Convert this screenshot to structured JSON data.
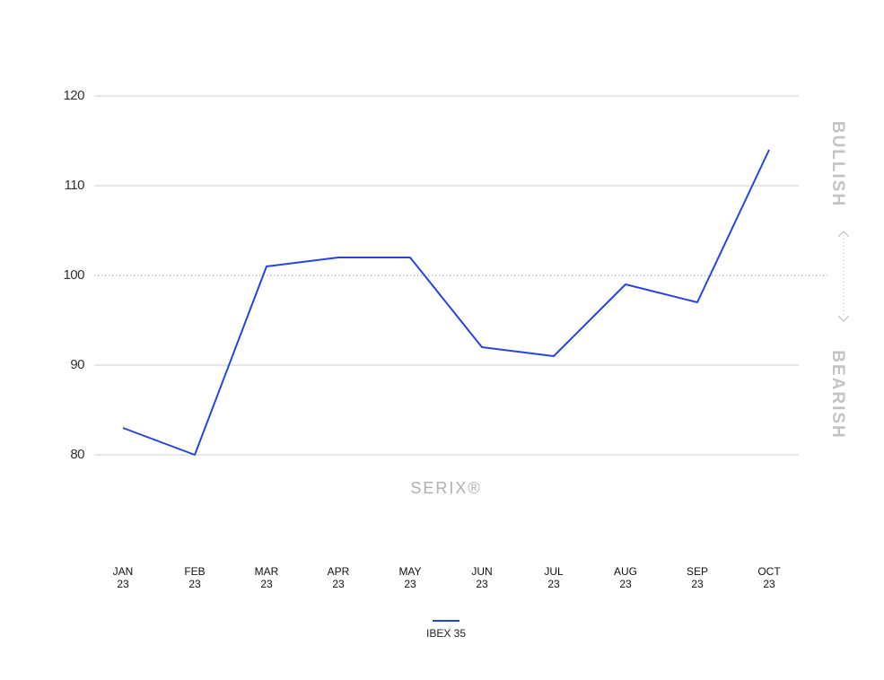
{
  "chart_data": {
    "type": "line",
    "watermark": "SERIX®",
    "upper_label": "BULLISH",
    "lower_label": "BEARISH",
    "categories": [
      "JAN 23",
      "FEB 23",
      "MAR 23",
      "APR 23",
      "MAY 23",
      "JUN 23",
      "JUL 23",
      "AUG 23",
      "SEP 23",
      "OCT 23"
    ],
    "series": [
      {
        "name": "IBEX 35",
        "color": "#2445e0",
        "values": [
          83,
          80,
          101,
          102,
          102,
          92,
          91,
          99,
          97,
          114
        ]
      }
    ],
    "ylim": [
      80,
      120
    ],
    "yticks": [
      80,
      90,
      100,
      110,
      120
    ],
    "baseline": 100,
    "grid": true,
    "legend": "bottom"
  }
}
